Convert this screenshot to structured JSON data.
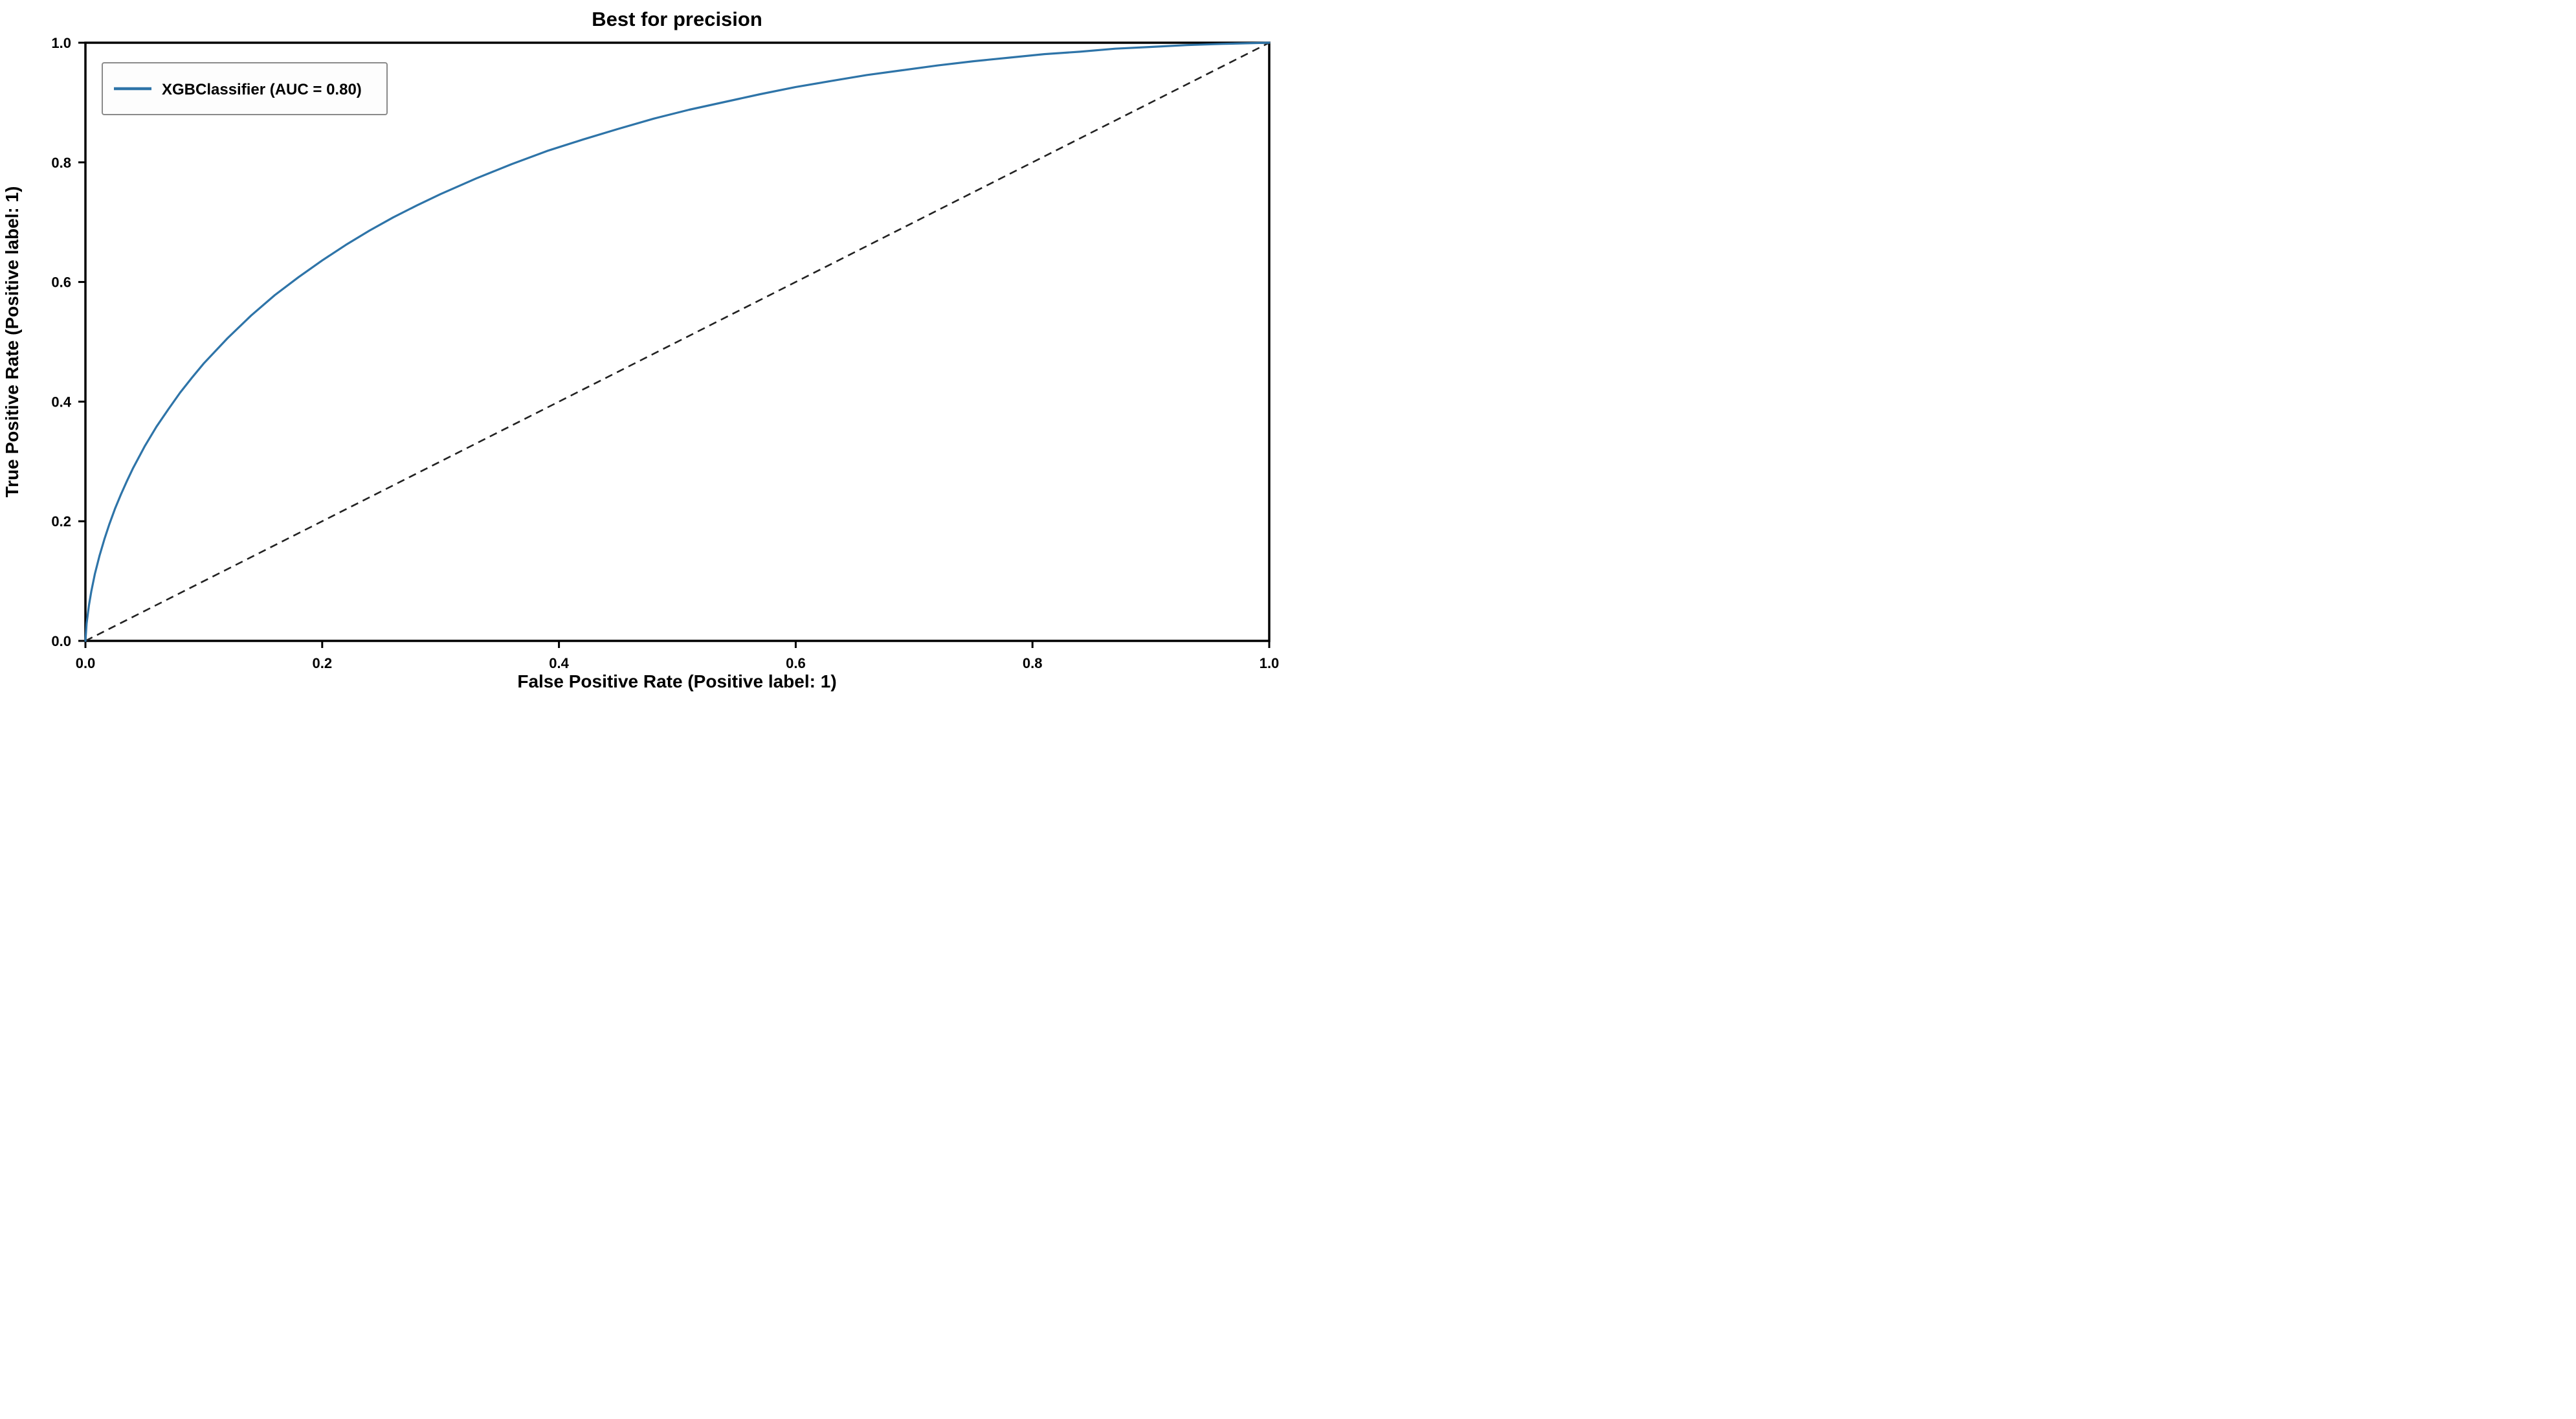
{
  "chart_data": {
    "type": "line",
    "title": "Best for precision",
    "xlabel": "False Positive Rate (Positive label: 1)",
    "ylabel": "True Positive Rate (Positive label: 1)",
    "xlim": [
      0.0,
      1.0
    ],
    "ylim": [
      0.0,
      1.0
    ],
    "x_ticks": [
      0.0,
      0.2,
      0.4,
      0.6,
      0.8,
      1.0
    ],
    "y_ticks": [
      0.0,
      0.2,
      0.4,
      0.6,
      0.8,
      1.0
    ],
    "grid": false,
    "legend": {
      "position": "upper left",
      "label": "XGBClassifier (AUC = 0.80)"
    },
    "series": [
      {
        "name": "XGBClassifier (AUC = 0.80)",
        "auc": 0.8,
        "color": "#2e74a8",
        "points": [
          [
            0.0,
            0.0
          ],
          [
            0.001,
            0.029
          ],
          [
            0.003,
            0.06
          ],
          [
            0.005,
            0.083
          ],
          [
            0.008,
            0.112
          ],
          [
            0.012,
            0.143
          ],
          [
            0.016,
            0.17
          ],
          [
            0.02,
            0.194
          ],
          [
            0.025,
            0.221
          ],
          [
            0.03,
            0.245
          ],
          [
            0.035,
            0.267
          ],
          [
            0.04,
            0.288
          ],
          [
            0.05,
            0.325
          ],
          [
            0.06,
            0.358
          ],
          [
            0.07,
            0.387
          ],
          [
            0.08,
            0.415
          ],
          [
            0.09,
            0.44
          ],
          [
            0.1,
            0.464
          ],
          [
            0.12,
            0.506
          ],
          [
            0.14,
            0.544
          ],
          [
            0.16,
            0.578
          ],
          [
            0.18,
            0.608
          ],
          [
            0.2,
            0.636
          ],
          [
            0.22,
            0.662
          ],
          [
            0.24,
            0.686
          ],
          [
            0.26,
            0.708
          ],
          [
            0.28,
            0.728
          ],
          [
            0.3,
            0.747
          ],
          [
            0.33,
            0.773
          ],
          [
            0.36,
            0.797
          ],
          [
            0.39,
            0.819
          ],
          [
            0.42,
            0.838
          ],
          [
            0.45,
            0.856
          ],
          [
            0.48,
            0.873
          ],
          [
            0.51,
            0.888
          ],
          [
            0.54,
            0.901
          ],
          [
            0.57,
            0.914
          ],
          [
            0.6,
            0.926
          ],
          [
            0.63,
            0.936
          ],
          [
            0.66,
            0.946
          ],
          [
            0.69,
            0.954
          ],
          [
            0.72,
            0.962
          ],
          [
            0.75,
            0.969
          ],
          [
            0.78,
            0.975
          ],
          [
            0.81,
            0.981
          ],
          [
            0.84,
            0.985
          ],
          [
            0.87,
            0.99
          ],
          [
            0.9,
            0.993
          ],
          [
            0.93,
            0.996
          ],
          [
            0.96,
            0.998
          ],
          [
            0.98,
            0.999
          ],
          [
            1.0,
            1.0
          ]
        ]
      }
    ],
    "diagonal": {
      "style": "dashed",
      "color": "#222222",
      "from": [
        0.0,
        0.0
      ],
      "to": [
        1.0,
        1.0
      ]
    },
    "colors": {
      "spine": "#000000",
      "tick": "#000000",
      "legend_border": "#8a8a8a",
      "legend_bg": "#fdfdfd",
      "background": "#ffffff"
    }
  }
}
